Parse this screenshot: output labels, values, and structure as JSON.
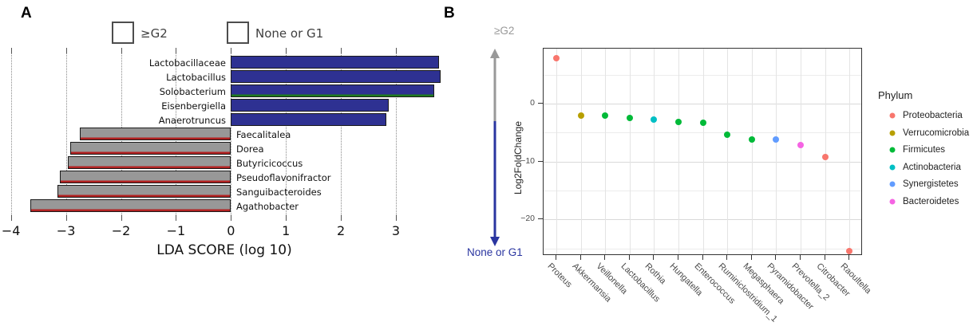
{
  "figure": {
    "panel_a_letter": "A",
    "panel_b_letter": "B"
  },
  "colors": {
    "bar_blue": "#2E3192",
    "bar_gray": "#989898",
    "bar_border": "#1a1a1a",
    "red_edge": "#B22222",
    "green_edge": "#1f7a1f",
    "arrow_gray": "#999999",
    "arrow_blue": "#2A35A0",
    "none_g1_text": "#2A35A0",
    "geq_g2_text": "#999999"
  },
  "chart_data": [
    {
      "type": "bar",
      "orientation": "horizontal",
      "xlabel": "LDA SCORE (log 10)",
      "xlim": [
        -4,
        4
      ],
      "xticks": [
        -4,
        -3,
        -2,
        -1,
        0,
        1,
        2,
        3
      ],
      "grid": "dotted-vertical",
      "legend": [
        {
          "label": "≥G2",
          "color": "#989898"
        },
        {
          "label": "None or G1",
          "color": "#2E3192"
        }
      ],
      "bars": [
        {
          "taxon": "Lactobacillaceae",
          "value": 3.79,
          "group": "None or G1",
          "color": "#2E3192",
          "bottom_edge": null
        },
        {
          "taxon": "Lactobacillus",
          "value": 3.81,
          "group": "None or G1",
          "color": "#2E3192",
          "bottom_edge": null
        },
        {
          "taxon": "Solobacterium",
          "value": 3.7,
          "group": "None or G1",
          "color": "#2E3192",
          "bottom_edge": "#1f7a1f"
        },
        {
          "taxon": "Eisenbergiella",
          "value": 2.87,
          "group": "None or G1",
          "color": "#2E3192",
          "bottom_edge": null
        },
        {
          "taxon": "Anaerotruncus",
          "value": 2.83,
          "group": "None or G1",
          "color": "#2E3192",
          "bottom_edge": null
        },
        {
          "taxon": "Faecalitalea",
          "value": -2.75,
          "group": "≥G2",
          "color": "#989898",
          "bottom_edge": "#B22222"
        },
        {
          "taxon": "Dorea",
          "value": -2.92,
          "group": "≥G2",
          "color": "#989898",
          "bottom_edge": "#B22222"
        },
        {
          "taxon": "Butyricicoccus",
          "value": -2.97,
          "group": "≥G2",
          "color": "#989898",
          "bottom_edge": "#B22222"
        },
        {
          "taxon": "Pseudoflavonifractor",
          "value": -3.11,
          "group": "≥G2",
          "color": "#989898",
          "bottom_edge": "#B22222"
        },
        {
          "taxon": "Sanguibacteroides",
          "value": -3.15,
          "group": "≥G2",
          "color": "#989898",
          "bottom_edge": "#B22222"
        },
        {
          "taxon": "Agathobacter",
          "value": -3.65,
          "group": "≥G2",
          "color": "#989898",
          "bottom_edge": "#B22222"
        }
      ]
    },
    {
      "type": "scatter",
      "ylabel": "Log2FoldChange",
      "top_label": "≥G2",
      "bottom_label": "None or G1",
      "ylim": [
        -26.5,
        9.5
      ],
      "yticks": [
        0,
        -10,
        -20
      ],
      "grid": "light-gray",
      "legend_title": "Phylum",
      "phyla": [
        {
          "name": "Proteobacteria",
          "color": "#F8766D"
        },
        {
          "name": "Verrucomicrobia",
          "color": "#B79F00"
        },
        {
          "name": "Firmicutes",
          "color": "#00BA38"
        },
        {
          "name": "Actinobacteria",
          "color": "#00BFC4"
        },
        {
          "name": "Synergistetes",
          "color": "#619CFF"
        },
        {
          "name": "Bacteroidetes",
          "color": "#F564E3"
        }
      ],
      "points": [
        {
          "genus": "Proteus",
          "value": 7.8,
          "phylum": "Proteobacteria"
        },
        {
          "genus": "Akkermansia",
          "value": -2.0,
          "phylum": "Verrucomicrobia"
        },
        {
          "genus": "Veillonella",
          "value": -2.0,
          "phylum": "Firmicutes"
        },
        {
          "genus": "Lactobacillus",
          "value": -2.5,
          "phylum": "Firmicutes"
        },
        {
          "genus": "Rothia",
          "value": -2.7,
          "phylum": "Actinobacteria"
        },
        {
          "genus": "Hungatella",
          "value": -3.1,
          "phylum": "Firmicutes"
        },
        {
          "genus": "Enterococcus",
          "value": -3.3,
          "phylum": "Firmicutes"
        },
        {
          "genus": "Ruminiclostridium_1",
          "value": -5.4,
          "phylum": "Firmicutes"
        },
        {
          "genus": "Megasphaera",
          "value": -6.2,
          "phylum": "Firmicutes"
        },
        {
          "genus": "Pyramidobacter",
          "value": -6.2,
          "phylum": "Synergistetes"
        },
        {
          "genus": "Prevotella_2",
          "value": -7.2,
          "phylum": "Bacteroidetes"
        },
        {
          "genus": "Citrobacter",
          "value": -9.2,
          "phylum": "Proteobacteria"
        },
        {
          "genus": "Raoultella",
          "value": -25.4,
          "phylum": "Proteobacteria"
        }
      ]
    }
  ]
}
